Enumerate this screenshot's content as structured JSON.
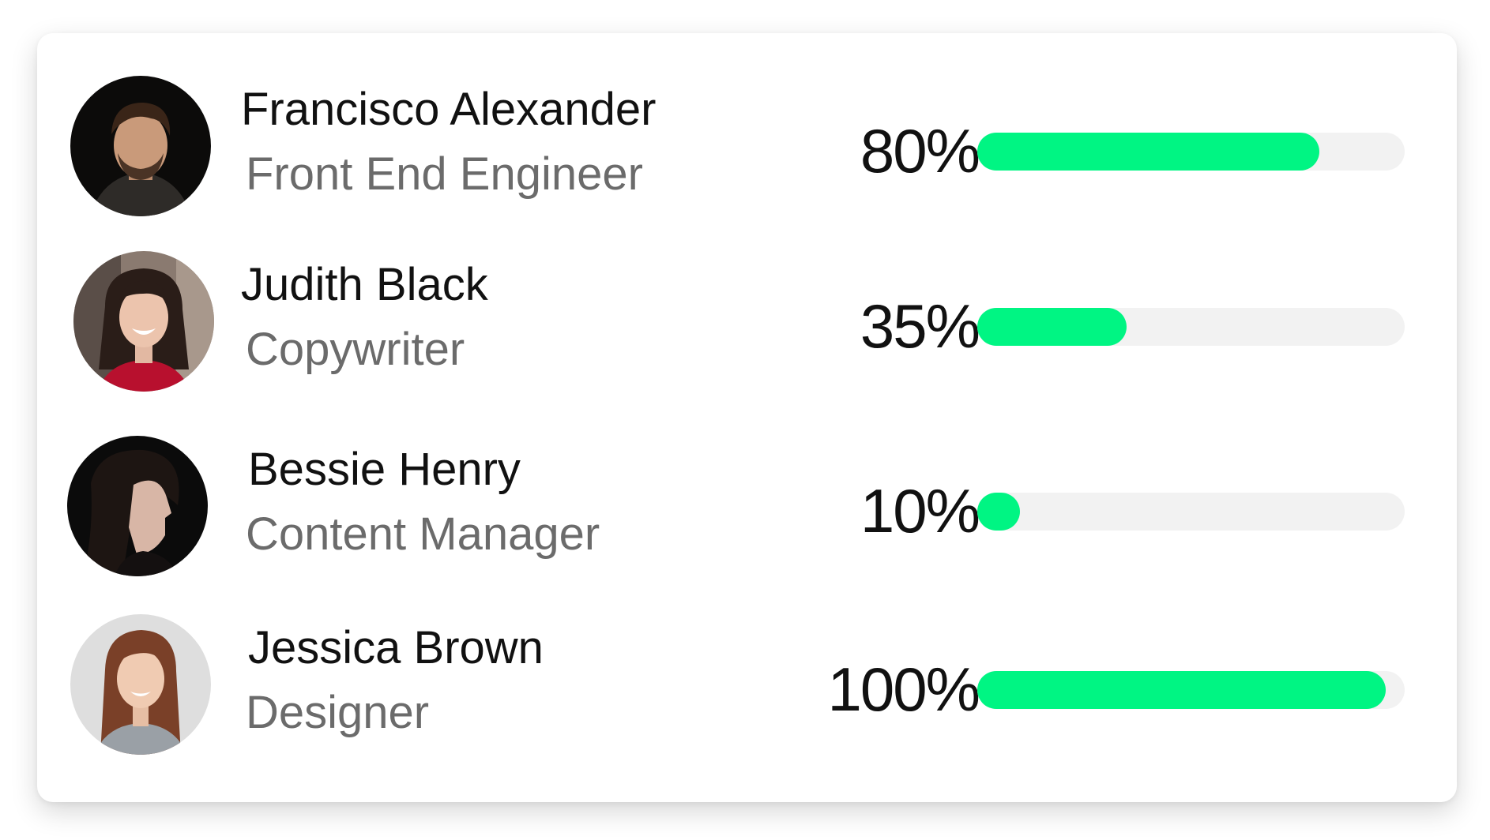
{
  "team": {
    "accent_color": "#00f583",
    "track_color": "#f2f2f2",
    "members": [
      {
        "name": "Francisco Alexander",
        "role": "Front End Engineer",
        "progress_label": "80%",
        "progress": 80,
        "avatar_icon": "man-portrait"
      },
      {
        "name": "Judith Black",
        "role": "Copywriter",
        "progress_label": "35%",
        "progress": 35,
        "avatar_icon": "woman-portrait"
      },
      {
        "name": "Bessie Henry",
        "role": "Content Manager",
        "progress_label": "10%",
        "progress": 10,
        "avatar_icon": "woman-profile-portrait"
      },
      {
        "name": "Jessica Brown",
        "role": "Designer",
        "progress_label": "100%",
        "progress": 100,
        "avatar_icon": "woman-portrait"
      }
    ]
  }
}
